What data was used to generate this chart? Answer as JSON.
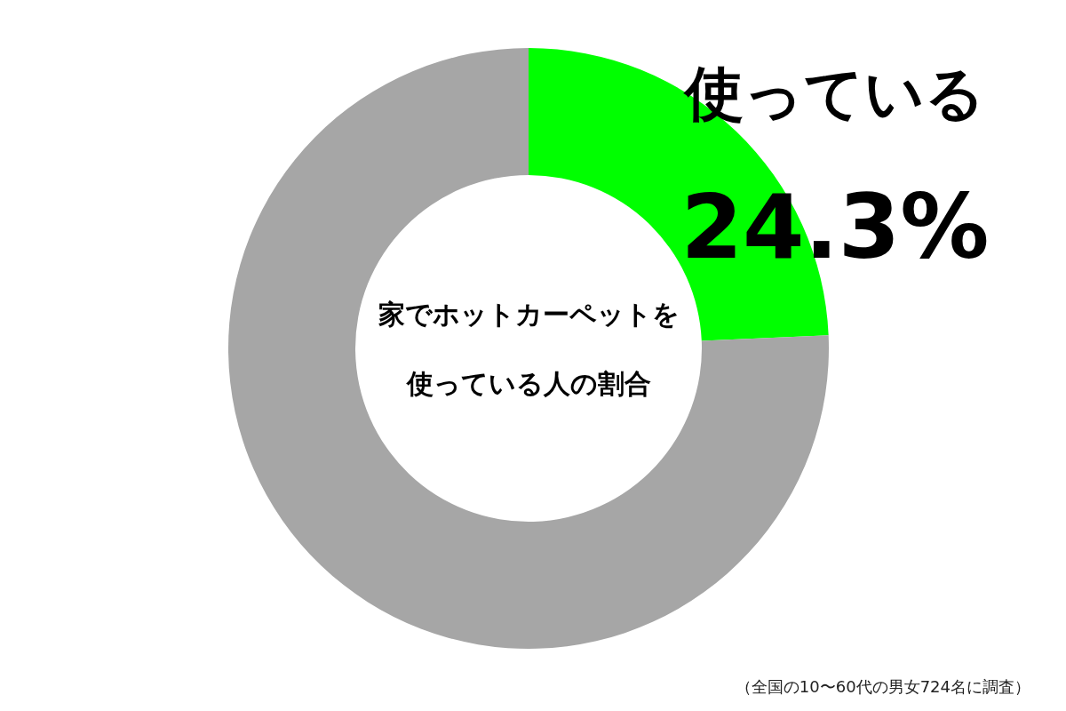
{
  "chart_data": {
    "type": "donut",
    "title": "家でホットカーペットを使っている人の割合",
    "categories": [
      "使っている",
      null
    ],
    "values": [
      24.3,
      75.7
    ],
    "colors": [
      "#00ff00",
      "#a6a6a6"
    ],
    "value_labels": [
      "24.3%",
      null
    ],
    "annotations": [
      "（全国の10〜60代の男女724名に調査）"
    ]
  }
}
